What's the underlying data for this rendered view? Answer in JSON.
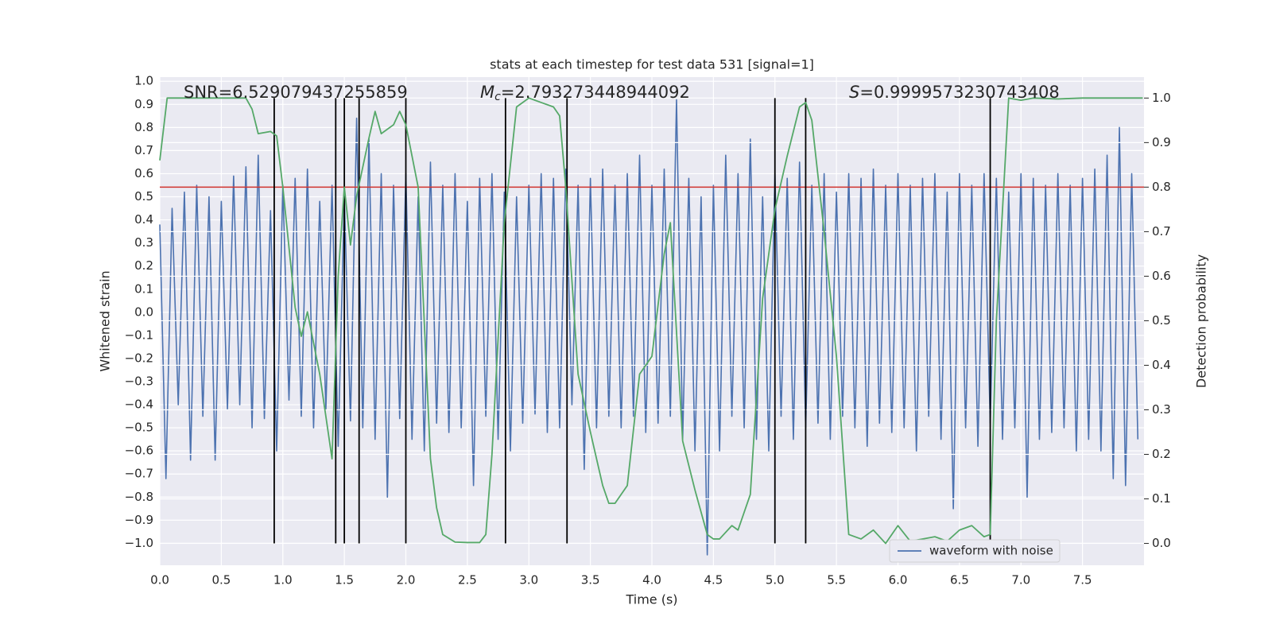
{
  "chart_data": {
    "type": "line",
    "title": "stats at each timestep for test data 531 [signal=1]",
    "x_label": "Time (s)",
    "y_label": "Whitened strain",
    "y2_label": "Detection probability",
    "xlim": [
      0,
      8
    ],
    "ylim": [
      -1.095,
      1.018
    ],
    "y2lim": [
      -0.049,
      1.047
    ],
    "xticks": [
      {
        "value": 0,
        "label": "0.0"
      },
      0.5,
      {
        "value": 1,
        "label": "1.0"
      },
      1.5,
      {
        "value": 2,
        "label": "2.0"
      },
      2.5,
      {
        "value": 3,
        "label": "3.0"
      },
      3.5,
      {
        "value": 4,
        "label": "4.0"
      },
      4.5,
      {
        "value": 5,
        "label": "5.0"
      },
      5.5,
      {
        "value": 6,
        "label": "6.0"
      },
      6.5,
      {
        "value": 7,
        "label": "7.0"
      },
      7.5
    ],
    "yticks": [
      {
        "value": -1,
        "label": "−1.0"
      },
      {
        "value": -0.9,
        "label": "−0.9"
      },
      {
        "value": -0.8,
        "label": "−0.8"
      },
      {
        "value": -0.7,
        "label": "−0.7"
      },
      {
        "value": -0.6,
        "label": "−0.6"
      },
      {
        "value": -0.5,
        "label": "−0.5"
      },
      {
        "value": -0.4,
        "label": "−0.4"
      },
      {
        "value": -0.3,
        "label": "−0.3"
      },
      {
        "value": -0.2,
        "label": "−0.2"
      },
      {
        "value": -0.1,
        "label": "−0.1"
      },
      {
        "value": 0,
        "label": "0.0"
      },
      0.1,
      0.2,
      0.3,
      0.4,
      0.5,
      0.6,
      0.7,
      0.8,
      0.9,
      {
        "value": 1,
        "label": "1.0"
      }
    ],
    "y2ticks": [
      {
        "value": 0,
        "label": "0.0"
      },
      0.1,
      0.2,
      0.3,
      0.4,
      0.5,
      0.6,
      0.7,
      0.8,
      0.9,
      {
        "value": 1,
        "label": "1.0"
      }
    ],
    "grid": true,
    "legend": "lower right",
    "annotations": [
      {
        "text": "SNR=6.529079437255859"
      },
      {
        "symbol": "M",
        "subscript": "c",
        "text": "=2.793273448944092"
      },
      {
        "symbol": "S",
        "text": "=0.9999573230743408"
      }
    ],
    "series": [
      {
        "name": "waveform with noise",
        "color": "#4c72b0",
        "axis": "y",
        "x": [
          0,
          0.05,
          0.1,
          0.15,
          0.2,
          0.25,
          0.3,
          0.35,
          0.4,
          0.45,
          0.5,
          0.55,
          0.6,
          0.65,
          0.7,
          0.75,
          0.8,
          0.85,
          0.9,
          0.95,
          1,
          1.05,
          1.1,
          1.15,
          1.2,
          1.25,
          1.3,
          1.35,
          1.4,
          1.45,
          1.5,
          1.55,
          1.6,
          1.65,
          1.7,
          1.75,
          1.8,
          1.85,
          1.9,
          1.95,
          2,
          2.05,
          2.1,
          2.15,
          2.2,
          2.25,
          2.3,
          2.35,
          2.4,
          2.45,
          2.5,
          2.55,
          2.6,
          2.65,
          2.7,
          2.75,
          2.8,
          2.85,
          2.9,
          2.95,
          3,
          3.05,
          3.1,
          3.15,
          3.2,
          3.25,
          3.3,
          3.35,
          3.4,
          3.45,
          3.5,
          3.55,
          3.6,
          3.65,
          3.7,
          3.75,
          3.8,
          3.85,
          3.9,
          3.95,
          4,
          4.05,
          4.1,
          4.15,
          4.2,
          4.25,
          4.3,
          4.35,
          4.4,
          4.45,
          4.5,
          4.55,
          4.6,
          4.65,
          4.7,
          4.75,
          4.8,
          4.85,
          4.9,
          4.95,
          5,
          5.05,
          5.1,
          5.15,
          5.2,
          5.25,
          5.3,
          5.35,
          5.4,
          5.45,
          5.5,
          5.55,
          5.6,
          5.65,
          5.7,
          5.75,
          5.8,
          5.85,
          5.9,
          5.95,
          6,
          6.05,
          6.1,
          6.15,
          6.2,
          6.25,
          6.3,
          6.35,
          6.4,
          6.45,
          6.5,
          6.55,
          6.6,
          6.65,
          6.7,
          6.75,
          6.8,
          6.85,
          6.9,
          6.95,
          7,
          7.05,
          7.1,
          7.15,
          7.2,
          7.25,
          7.3,
          7.35,
          7.4,
          7.45,
          7.5,
          7.55,
          7.6,
          7.65,
          7.7,
          7.75,
          7.8,
          7.85,
          7.9,
          7.95
        ],
        "values": [
          0.38,
          -0.72,
          0.45,
          -0.4,
          0.52,
          -0.64,
          0.55,
          -0.45,
          0.5,
          -0.64,
          0.48,
          -0.42,
          0.59,
          -0.4,
          0.63,
          -0.5,
          0.68,
          -0.46,
          0.44,
          -0.6,
          0.55,
          -0.38,
          0.58,
          -0.45,
          0.62,
          -0.5,
          0.48,
          -0.42,
          0.55,
          -0.58,
          0.5,
          -0.47,
          0.84,
          -0.5,
          0.75,
          -0.55,
          0.6,
          -0.8,
          0.55,
          -0.46,
          0.6,
          -0.55,
          0.5,
          -0.6,
          0.65,
          -0.48,
          0.55,
          -0.52,
          0.6,
          -0.5,
          0.48,
          -0.75,
          0.58,
          -0.45,
          0.6,
          -0.55,
          0.52,
          -0.6,
          0.5,
          -0.48,
          0.55,
          -0.44,
          0.6,
          -0.52,
          0.58,
          -0.5,
          0.62,
          -0.4,
          0.55,
          -0.68,
          0.58,
          -0.5,
          0.62,
          -0.45,
          0.55,
          -0.5,
          0.6,
          -0.45,
          0.68,
          -0.52,
          0.55,
          -0.48,
          0.62,
          -0.45,
          0.92,
          -0.55,
          0.58,
          -0.6,
          0.5,
          -1.05,
          0.55,
          -0.6,
          0.68,
          -0.45,
          0.6,
          -0.5,
          0.75,
          -0.55,
          0.5,
          -0.6,
          0.6,
          -0.45,
          0.58,
          -0.55,
          0.65,
          -0.5,
          0.55,
          -0.48,
          0.6,
          -0.55,
          0.52,
          -0.45,
          0.6,
          -0.5,
          0.58,
          -0.58,
          0.62,
          -0.48,
          0.55,
          -0.52,
          0.6,
          -0.5,
          0.55,
          -0.6,
          0.58,
          -0.45,
          0.6,
          -0.55,
          0.52,
          -0.85,
          0.6,
          -0.5,
          0.55,
          -0.58,
          0.6,
          -0.48,
          0.58,
          -0.55,
          0.52,
          -0.5,
          0.6,
          -0.8,
          0.58,
          -0.55,
          0.55,
          -0.52,
          0.6,
          -0.5,
          0.55,
          -0.6,
          0.58,
          -0.55,
          0.62,
          -0.6,
          0.68,
          -0.72,
          0.8,
          -0.75,
          0.6,
          -0.55
        ]
      },
      {
        "color": "#55a868",
        "axis": "y2",
        "x": [
          0,
          0.06,
          0.1,
          0.2,
          0.3,
          0.4,
          0.5,
          0.6,
          0.7,
          0.75,
          0.8,
          0.9,
          0.95,
          1,
          1.1,
          1.15,
          1.2,
          1.3,
          1.4,
          1.45,
          1.5,
          1.55,
          1.6,
          1.7,
          1.75,
          1.8,
          1.9,
          1.95,
          2,
          2.1,
          2.2,
          2.25,
          2.3,
          2.4,
          2.5,
          2.6,
          2.65,
          2.7,
          2.8,
          2.9,
          3,
          3.1,
          3.2,
          3.25,
          3.3,
          3.4,
          3.5,
          3.6,
          3.65,
          3.7,
          3.8,
          3.9,
          4,
          4.1,
          4.15,
          4.25,
          4.35,
          4.45,
          4.5,
          4.55,
          4.65,
          4.7,
          4.8,
          4.9,
          5,
          5.1,
          5.2,
          5.25,
          5.3,
          5.4,
          5.5,
          5.6,
          5.7,
          5.8,
          5.9,
          6,
          6.1,
          6.2,
          6.3,
          6.4,
          6.5,
          6.6,
          6.7,
          6.75,
          6.8,
          6.9,
          7,
          7.1,
          7.3,
          7.5,
          7.99
        ],
        "values": [
          0.86,
          1,
          1,
          1,
          1,
          1,
          1,
          1,
          1,
          0.975,
          0.92,
          0.925,
          0.915,
          0.8,
          0.53,
          0.465,
          0.52,
          0.38,
          0.19,
          0.6,
          0.8,
          0.67,
          0.78,
          0.91,
          0.97,
          0.92,
          0.94,
          0.97,
          0.94,
          0.8,
          0.19,
          0.08,
          0.02,
          0.003,
          0.002,
          0.002,
          0.02,
          0.2,
          0.72,
          0.98,
          1,
          0.99,
          0.98,
          0.96,
          0.8,
          0.38,
          0.25,
          0.13,
          0.09,
          0.09,
          0.13,
          0.38,
          0.42,
          0.65,
          0.72,
          0.23,
          0.12,
          0.02,
          0.01,
          0.01,
          0.04,
          0.03,
          0.11,
          0.55,
          0.75,
          0.87,
          0.98,
          0.99,
          0.95,
          0.7,
          0.42,
          0.02,
          0.01,
          0.03,
          0,
          0.04,
          0.005,
          0.01,
          0.015,
          0.005,
          0.03,
          0.04,
          0.015,
          0.02,
          0.5,
          1,
          0.995,
          1,
          0.998,
          1,
          1
        ]
      }
    ],
    "hlines": [
      {
        "y": 0.8,
        "axis": "y2",
        "color": "#d0312d"
      }
    ],
    "vlines": {
      "x": [
        0.93,
        1.43,
        1.5,
        1.62,
        2.0,
        2.81,
        3.31,
        5.0,
        5.25,
        6.75
      ],
      "ymin": 0,
      "ymax": 1,
      "axis": "y2",
      "color": "#000000"
    }
  }
}
